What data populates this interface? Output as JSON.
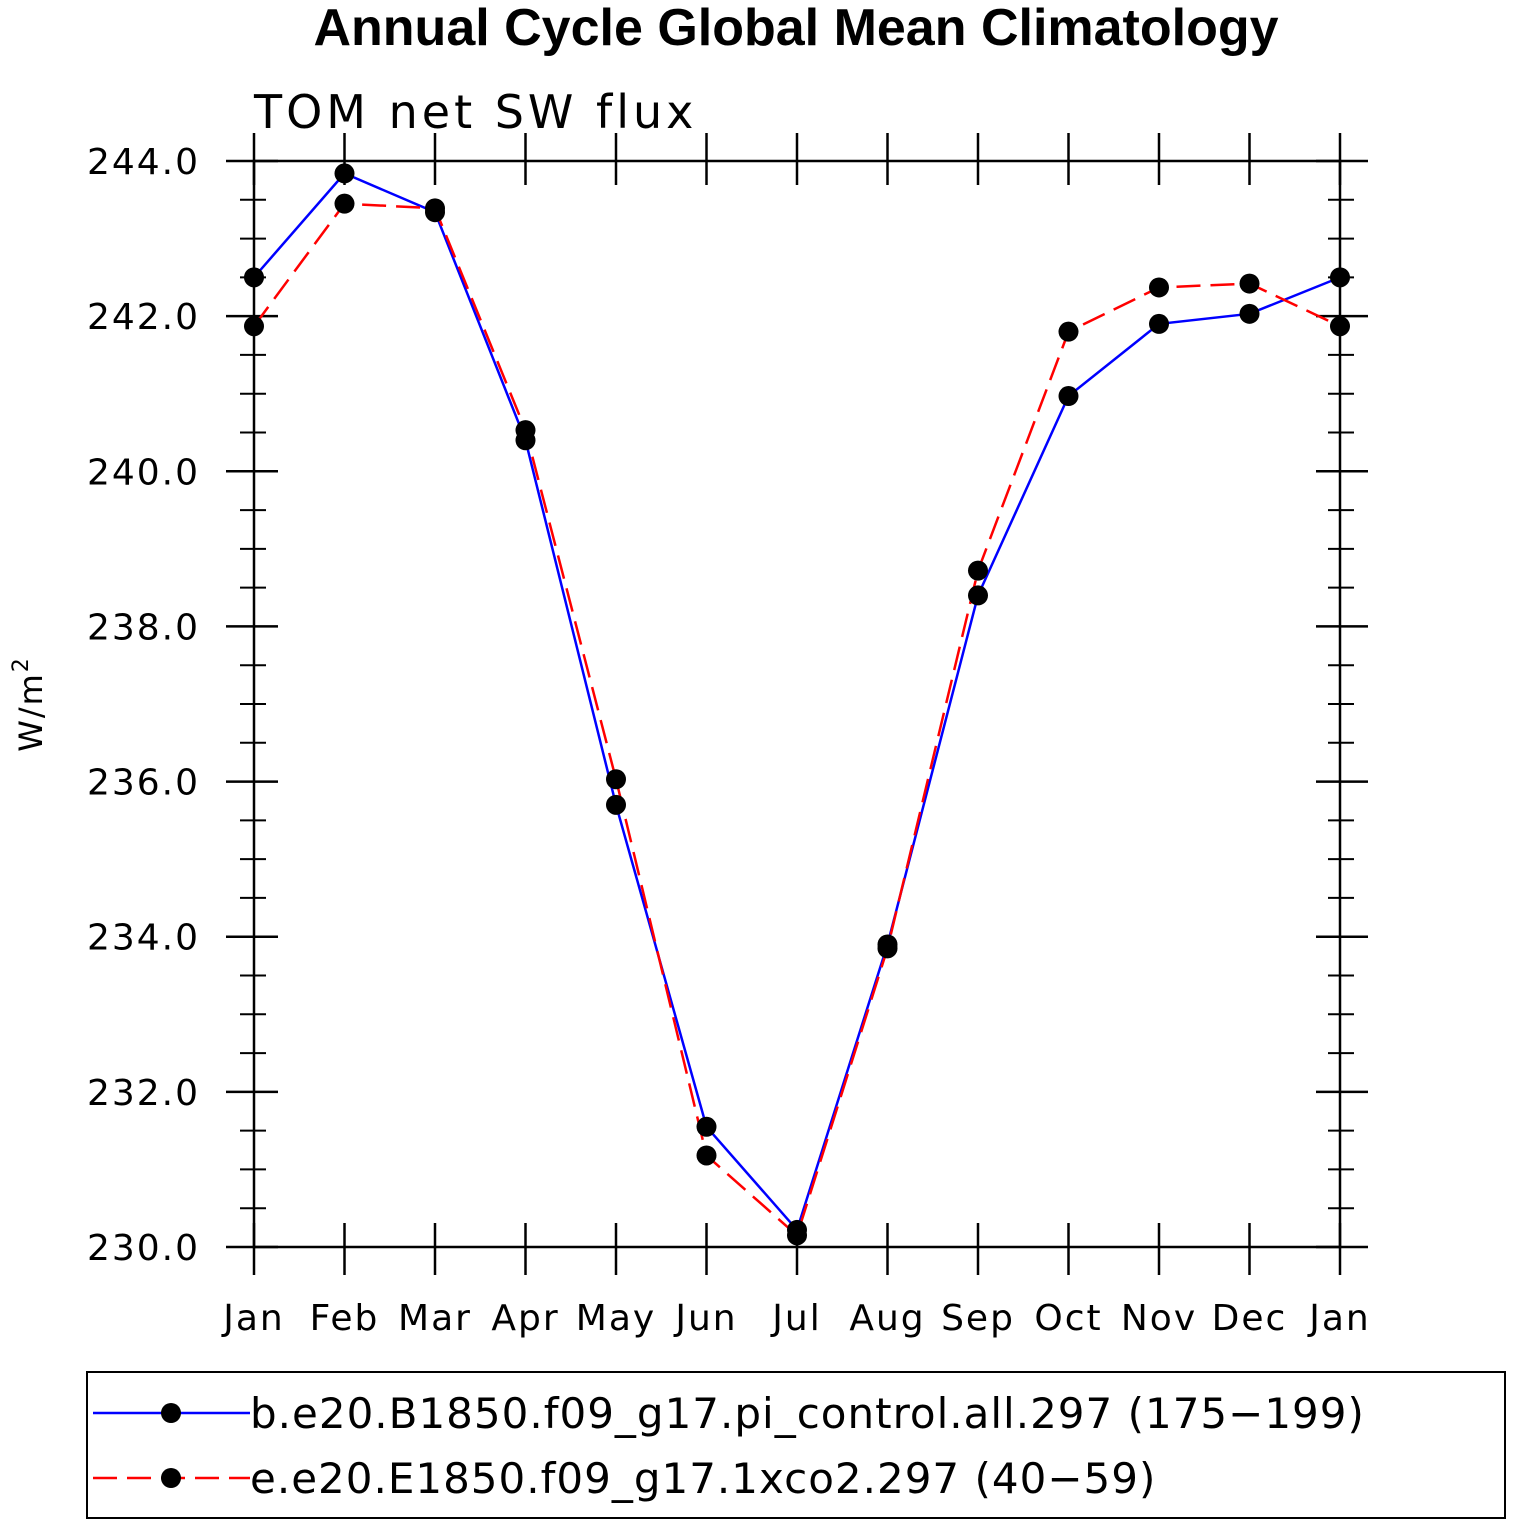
{
  "chart_data": {
    "type": "line",
    "title": "Annual Cycle Global Mean Climatology",
    "subtitle": "TOM net SW flux",
    "ylabel": "W/m",
    "ylabel_superscript": "2",
    "xlabel": "",
    "categories": [
      "Jan",
      "Feb",
      "Mar",
      "Apr",
      "May",
      "Jun",
      "Jul",
      "Aug",
      "Sep",
      "Oct",
      "Nov",
      "Dec",
      "Jan"
    ],
    "ylim": [
      230.0,
      244.0
    ],
    "yticks": [
      "230.0",
      "232.0",
      "234.0",
      "236.0",
      "238.0",
      "240.0",
      "242.0",
      "244.0"
    ],
    "series": [
      {
        "name": "b.e20.B1850.f09_g17.pi_control.all.297 (175−199)",
        "color": "#0000ff",
        "dash": "solid",
        "values": [
          242.5,
          243.84,
          243.34,
          240.4,
          235.7,
          231.55,
          230.22,
          233.9,
          238.4,
          240.97,
          241.9,
          242.03,
          242.5
        ]
      },
      {
        "name": "e.e20.E1850.f09_g17.1xco2.297 (40−59)",
        "color": "#ff0000",
        "dash": "dashed",
        "values": [
          241.87,
          243.45,
          243.39,
          240.53,
          236.03,
          231.18,
          230.15,
          233.85,
          238.72,
          241.8,
          242.37,
          242.42,
          241.87
        ]
      }
    ]
  }
}
